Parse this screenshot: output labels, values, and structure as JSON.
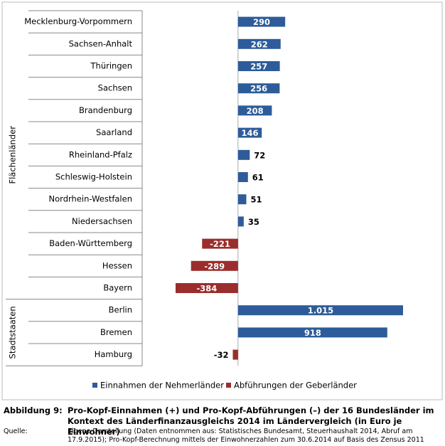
{
  "chart_data": {
    "type": "bar",
    "categories": [
      "Mecklenburg-Vorpommern",
      "Sachsen-Anhalt",
      "Thüringen",
      "Sachsen",
      "Brandenburg",
      "Saarland",
      "Rheinland-Pfalz",
      "Schleswig-Holstein",
      "Nordrhein-Westfalen",
      "Niedersachsen",
      "Baden-Württemberg",
      "Hessen",
      "Bayern",
      "Berlin",
      "Bremen",
      "Hamburg"
    ],
    "groups": [
      {
        "label": "Flächenländer"
      },
      {
        "label": "Stadtstaaten"
      }
    ],
    "series": [
      {
        "name": "Einnahmen der Nehmerländer",
        "color": "#2e5c9a",
        "values": [
          290,
          262,
          257,
          256,
          208,
          146,
          72,
          61,
          51,
          35,
          null,
          null,
          null,
          1015,
          918,
          null
        ],
        "value_labels": [
          "290",
          "262",
          "257",
          "256",
          "208",
          "146",
          "72",
          "61",
          "51",
          "35",
          null,
          null,
          null,
          "1.015",
          "918",
          null
        ]
      },
      {
        "name": "Abführungen der Geberländer",
        "color": "#9b2d2d",
        "values": [
          null,
          null,
          null,
          null,
          null,
          null,
          null,
          null,
          null,
          null,
          -221,
          -289,
          -384,
          null,
          null,
          -32
        ],
        "value_labels": [
          null,
          null,
          null,
          null,
          null,
          null,
          null,
          null,
          null,
          null,
          "-221",
          "-289",
          "-384",
          null,
          null,
          "-32"
        ]
      }
    ],
    "xlim": [
      -384,
      1015
    ]
  },
  "caption": {
    "label": "Abbildung 9:",
    "text": "Pro-Kopf-Einnahmen (+) und Pro-Kopf-Abführungen (–) der 16 Bundesländer im Kontext des Länderfinanzausgleichs 2014 im Ländervergleich (in Euro je Einwohner)"
  },
  "source": {
    "label": "Quelle:",
    "text": "Eigene Darstellung (Daten entnommen aus: Statistisches Bundesamt, Steuerhaushalt 2014, Abruf am 17.9.2015); Pro-Kopf-Berechnung mittels der Einwohnerzahlen zum 30.6.2014 auf Basis des Zensus 2011"
  }
}
